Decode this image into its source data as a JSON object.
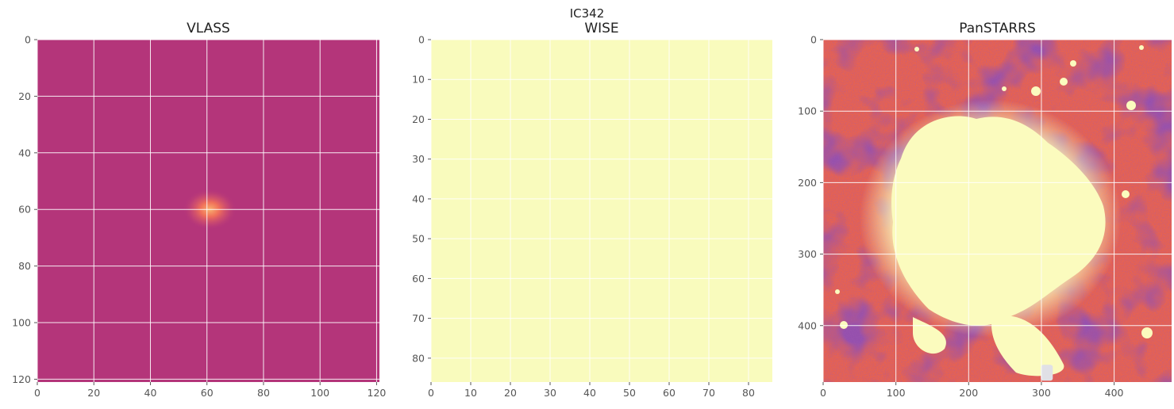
{
  "figure_title": "IC342",
  "colors": {
    "grid": "#ffffff",
    "tick_text": "#555555",
    "colormap": "magma"
  },
  "chart_data": [
    {
      "type": "heatmap",
      "title": "VLASS",
      "image_shape": [
        122,
        122
      ],
      "xlim": [
        0,
        121
      ],
      "ylim": [
        121,
        0
      ],
      "x_ticks": [
        0,
        20,
        40,
        60,
        80,
        100,
        120
      ],
      "y_ticks": [
        0,
        20,
        40,
        60,
        80,
        100,
        120
      ],
      "grid": true,
      "background_color": "#b4357a",
      "features": [
        {
          "kind": "point_source",
          "x": 61,
          "y": 60,
          "peak_color": "#f7a069"
        }
      ]
    },
    {
      "type": "heatmap",
      "title": "WISE",
      "image_shape": [
        87,
        87
      ],
      "xlim": [
        0,
        86
      ],
      "ylim": [
        86,
        0
      ],
      "x_ticks": [
        0,
        10,
        20,
        30,
        40,
        50,
        60,
        70,
        80
      ],
      "y_ticks": [
        0,
        10,
        20,
        30,
        40,
        50,
        60,
        70,
        80
      ],
      "grid": true,
      "background_color": "#f9fbbd",
      "features": []
    },
    {
      "type": "heatmap",
      "title": "PanSTARRS",
      "image_shape": [
        480,
        480
      ],
      "xlim": [
        0,
        479
      ],
      "ylim": [
        479,
        0
      ],
      "x_ticks": [
        0,
        100,
        200,
        300,
        400
      ],
      "y_ticks": [
        0,
        100,
        200,
        300,
        400
      ],
      "grid": true,
      "background_color": "#e8624e",
      "features": [
        {
          "kind": "saturated_galaxy_core",
          "x": 230,
          "y": 250,
          "color": "#fbfbbe"
        },
        {
          "kind": "masked_region",
          "x": 308,
          "y": 466,
          "color": "#e0e0e6"
        }
      ]
    }
  ]
}
